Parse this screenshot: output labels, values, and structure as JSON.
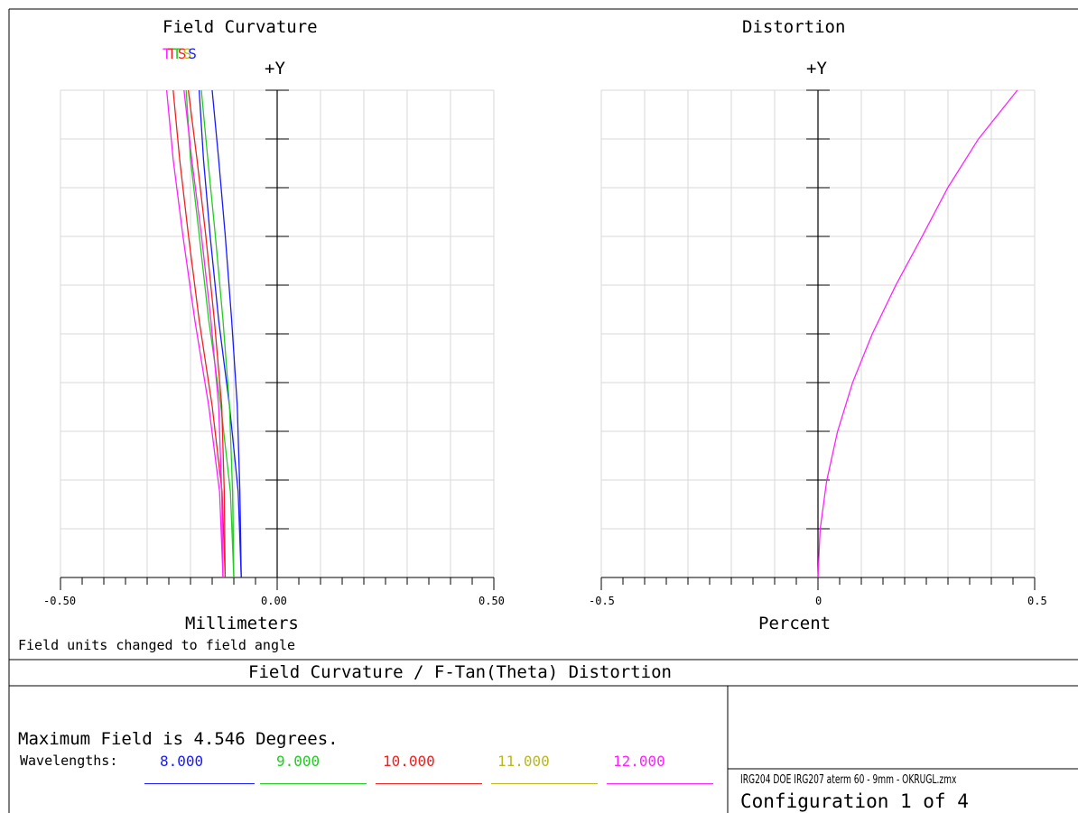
{
  "chart_data": [
    {
      "type": "line",
      "title": "Field Curvature",
      "legend_text": "TTTSS",
      "y_axis_label": "+Y",
      "xlabel": "Millimeters",
      "xlim": [
        -0.5,
        0.5
      ],
      "x_tick_labels": [
        "-0.50",
        "0.00",
        "0.50"
      ],
      "ylim": [
        0,
        4.546
      ],
      "grid": true,
      "series": [
        {
          "color": "#1a1aff",
          "x": [
            -0.083,
            -0.086,
            -0.092,
            -0.105,
            -0.12,
            -0.135,
            -0.15
          ],
          "y": [
            0,
            0.8,
            1.6,
            2.4,
            3.2,
            3.9,
            4.546
          ]
        },
        {
          "color": "#1a1aff",
          "x": [
            -0.083,
            -0.09,
            -0.11,
            -0.135,
            -0.155,
            -0.17,
            -0.18
          ],
          "y": [
            0,
            0.8,
            1.6,
            2.4,
            3.2,
            3.9,
            4.546
          ]
        },
        {
          "color": "#22cc22",
          "x": [
            -0.1,
            -0.103,
            -0.11,
            -0.125,
            -0.143,
            -0.16,
            -0.175
          ],
          "y": [
            0,
            0.8,
            1.6,
            2.4,
            3.2,
            3.9,
            4.546
          ]
        },
        {
          "color": "#22cc22",
          "x": [
            -0.1,
            -0.108,
            -0.13,
            -0.158,
            -0.18,
            -0.2,
            -0.21
          ],
          "y": [
            0,
            0.8,
            1.6,
            2.4,
            3.2,
            3.9,
            4.546
          ]
        },
        {
          "color": "#ee2222",
          "x": [
            -0.12,
            -0.122,
            -0.128,
            -0.145,
            -0.165,
            -0.185,
            -0.205
          ],
          "y": [
            0,
            0.8,
            1.6,
            2.4,
            3.2,
            3.9,
            4.546
          ]
        },
        {
          "color": "#ee2222",
          "x": [
            -0.12,
            -0.127,
            -0.15,
            -0.18,
            -0.205,
            -0.225,
            -0.24
          ],
          "y": [
            0,
            0.8,
            1.6,
            2.4,
            3.2,
            3.9,
            4.546
          ]
        },
        {
          "color": "#ff22ff",
          "x": [
            -0.125,
            -0.128,
            -0.135,
            -0.153,
            -0.175,
            -0.197,
            -0.215
          ],
          "y": [
            0,
            0.8,
            1.6,
            2.4,
            3.2,
            3.9,
            4.546
          ]
        },
        {
          "color": "#ff22ff",
          "x": [
            -0.125,
            -0.133,
            -0.158,
            -0.19,
            -0.218,
            -0.24,
            -0.255
          ],
          "y": [
            0,
            0.8,
            1.6,
            2.4,
            3.2,
            3.9,
            4.546
          ]
        }
      ]
    },
    {
      "type": "line",
      "title": "Distortion",
      "y_axis_label": "+Y",
      "xlabel": "Percent",
      "xlim": [
        -0.5,
        0.5
      ],
      "x_tick_labels": [
        "-0.5",
        "0",
        "0.5"
      ],
      "ylim": [
        0,
        4.546
      ],
      "grid": true,
      "series": [
        {
          "color": "#ff22ff",
          "x": [
            0,
            0.005,
            0.02,
            0.045,
            0.08,
            0.125,
            0.18,
            0.24,
            0.3,
            0.37,
            0.46
          ],
          "y": [
            0,
            0.45,
            0.9,
            1.36,
            1.82,
            2.27,
            2.73,
            3.18,
            3.64,
            4.09,
            4.546
          ]
        }
      ]
    }
  ],
  "notes": {
    "field_units": "Field units changed to field angle"
  },
  "footer": {
    "title": "Field Curvature / F-Tan(Theta) Distortion",
    "max_field": "Maximum Field is 4.546 Degrees.",
    "wavelengths_label": "Wavelengths:",
    "wavelengths": [
      {
        "label": "8.000",
        "color": "#1a1aff"
      },
      {
        "label": "9.000",
        "color": "#22cc22"
      },
      {
        "label": "10.000",
        "color": "#ee2222"
      },
      {
        "label": "11.000",
        "color": "#b8b820"
      },
      {
        "label": "12.000",
        "color": "#ff22ff"
      }
    ],
    "file_name": "IRG204 DOE IRG207 aterm 60 - 9mm - OKRUGL.zmx",
    "configuration": "Configuration 1 of 4"
  }
}
